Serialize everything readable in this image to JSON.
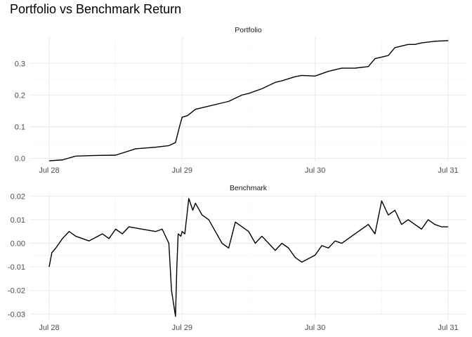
{
  "chart_data": {
    "type": "line",
    "title": "Portfolio vs Benchmark Return",
    "xlabel": "",
    "ylabel": "",
    "x_tick_labels": [
      "Jul 28",
      "Jul 29",
      "Jul 30",
      "Jul 31"
    ],
    "x_range": [
      "Jul 28",
      "Jul 31"
    ],
    "grid": true,
    "legend": "none",
    "line_color": "#000000",
    "panels": [
      {
        "name": "Portfolio",
        "ylim": [
          -0.01,
          0.385
        ],
        "y_ticks": [
          0.0,
          0.1,
          0.2,
          0.3
        ],
        "y_tick_labels": [
          "0.0",
          "0.1",
          "0.2",
          "0.3"
        ],
        "x_days": [
          0,
          0.1,
          0.2,
          0.35,
          0.5,
          0.65,
          0.8,
          0.9,
          0.95,
          0.98,
          1.0,
          1.04,
          1.1,
          1.2,
          1.3,
          1.35,
          1.45,
          1.5,
          1.6,
          1.7,
          1.75,
          1.85,
          1.9,
          2.0,
          2.1,
          2.15,
          2.2,
          2.3,
          2.4,
          2.45,
          2.5,
          2.55,
          2.6,
          2.7,
          2.75,
          2.8,
          2.9,
          3.0
        ],
        "values": [
          -0.008,
          -0.005,
          0.007,
          0.009,
          0.01,
          0.03,
          0.035,
          0.04,
          0.05,
          0.1,
          0.13,
          0.135,
          0.155,
          0.165,
          0.175,
          0.18,
          0.2,
          0.205,
          0.22,
          0.24,
          0.245,
          0.258,
          0.262,
          0.26,
          0.275,
          0.28,
          0.285,
          0.285,
          0.29,
          0.315,
          0.32,
          0.325,
          0.35,
          0.36,
          0.36,
          0.365,
          0.37,
          0.372
        ]
      },
      {
        "name": "Benchmark",
        "ylim": [
          -0.032,
          0.021
        ],
        "y_ticks": [
          -0.03,
          -0.02,
          -0.01,
          0.0,
          0.01,
          0.02
        ],
        "y_tick_labels": [
          "-0.03",
          "-0.02",
          "-0.01",
          "0.00",
          "0.01",
          "0.02"
        ],
        "x_days": [
          0,
          0.02,
          0.05,
          0.1,
          0.15,
          0.2,
          0.3,
          0.4,
          0.45,
          0.5,
          0.55,
          0.6,
          0.7,
          0.8,
          0.85,
          0.9,
          0.92,
          0.95,
          0.96,
          0.97,
          0.99,
          1.0,
          1.02,
          1.05,
          1.08,
          1.1,
          1.15,
          1.2,
          1.3,
          1.35,
          1.4,
          1.5,
          1.55,
          1.6,
          1.7,
          1.75,
          1.8,
          1.85,
          1.9,
          2.0,
          2.05,
          2.1,
          2.15,
          2.2,
          2.3,
          2.4,
          2.45,
          2.5,
          2.55,
          2.6,
          2.65,
          2.7,
          2.75,
          2.8,
          2.85,
          2.9,
          2.95,
          3.0
        ],
        "values": [
          -0.01,
          -0.004,
          -0.002,
          0.002,
          0.005,
          0.003,
          0.001,
          0.004,
          0.002,
          0.006,
          0.004,
          0.007,
          0.006,
          0.005,
          0.006,
          0.0,
          -0.02,
          -0.031,
          -0.01,
          0.004,
          0.003,
          0.005,
          0.004,
          0.019,
          0.014,
          0.017,
          0.012,
          0.01,
          0.0,
          -0.002,
          0.009,
          0.005,
          0.0,
          0.003,
          -0.003,
          0.0,
          -0.002,
          -0.006,
          -0.008,
          -0.005,
          -0.001,
          -0.002,
          0.001,
          0.0,
          0.004,
          0.008,
          0.004,
          0.018,
          0.012,
          0.014,
          0.008,
          0.01,
          0.008,
          0.006,
          0.01,
          0.008,
          0.007,
          0.007
        ]
      }
    ]
  }
}
